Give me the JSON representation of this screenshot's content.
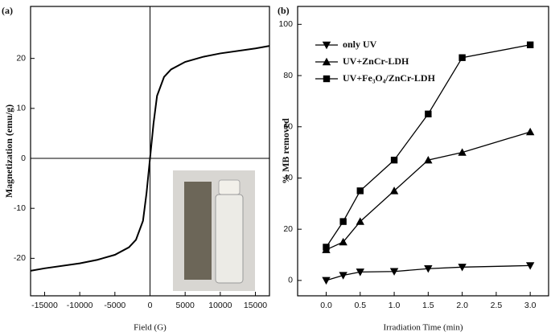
{
  "chart_data": [
    {
      "type": "line",
      "panel": "(a)",
      "x_label": "Field (G)",
      "y_label": "Magnetization (emu/g)",
      "x": [
        -17000,
        -15000,
        -10000,
        -7500,
        -5000,
        -3000,
        -2000,
        -1000,
        -500,
        0,
        500,
        1000,
        2000,
        3000,
        5000,
        7500,
        10000,
        15000,
        17000
      ],
      "series": [
        {
          "color": "#000000",
          "marker": "none",
          "values": [
            -22.5,
            -22,
            -21,
            -20.3,
            -19.3,
            -17.8,
            -16.3,
            -12.5,
            -7,
            0,
            7,
            12.5,
            16.3,
            17.8,
            19.3,
            20.3,
            21,
            22,
            22.5
          ]
        }
      ],
      "xlim": [
        -17000,
        17000
      ],
      "ylim": [
        -27.5,
        30.4
      ],
      "xticks": [
        -15000,
        -10000,
        -5000,
        0,
        5000,
        10000,
        15000
      ],
      "yticks": [
        -20,
        -10,
        0,
        10,
        20
      ],
      "zero_lines": true
    },
    {
      "type": "line",
      "panel": "(b)",
      "x_label": "Irradiation Time (min)",
      "y_label": "% MB removed",
      "x": [
        0,
        0.25,
        0.5,
        1.0,
        1.5,
        2.0,
        3.0
      ],
      "series": [
        {
          "name": "only UV",
          "color": "#000000",
          "marker": "triangle-down",
          "values": [
            0,
            2,
            3.3,
            3.5,
            4.6,
            5.2,
            5.8
          ]
        },
        {
          "name": "UV+ZnCr-LDH",
          "color": "#000000",
          "marker": "triangle-up",
          "values": [
            12,
            15,
            23,
            35,
            47,
            50,
            58
          ]
        },
        {
          "name": "UV+Fe₃O₄/ZnCr-LDH",
          "color": "#000000",
          "marker": "square",
          "values": [
            13,
            23,
            35,
            47,
            65,
            87,
            92
          ]
        }
      ],
      "xlim": [
        -0.42,
        3.27
      ],
      "ylim": [
        -6,
        107
      ],
      "xticks": [
        {
          "value": 0,
          "label": "0.0"
        },
        0.5,
        {
          "value": 1,
          "label": "1.0"
        },
        1.5,
        {
          "value": 2,
          "label": "2.0"
        },
        2.5,
        {
          "value": 3,
          "label": "3.0"
        }
      ],
      "yticks": [
        0,
        20,
        40,
        60,
        80,
        100
      ],
      "legend": "upper left",
      "zero_lines": false
    }
  ]
}
